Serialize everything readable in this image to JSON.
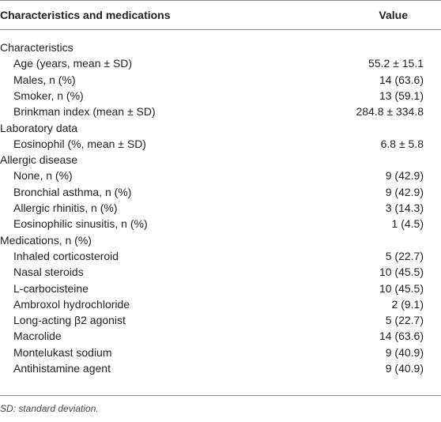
{
  "table": {
    "header": [
      "Characteristics and medications",
      "Value"
    ],
    "sections": [
      {
        "title": "Characteristics",
        "rows": [
          [
            "Age (years, mean ± SD)",
            "55.2 ± 15.1"
          ],
          [
            "Males, n (%)",
            "14 (63.6)"
          ],
          [
            "Smoker, n (%)",
            "13 (59.1)"
          ],
          [
            "Brinkman index (mean ± SD)",
            "284.8 ± 334.8"
          ]
        ]
      },
      {
        "title": "Laboratory data",
        "rows": [
          [
            "Eosinophil (%, mean ± SD)",
            "6.8 ± 5.8"
          ]
        ]
      },
      {
        "title": "Allergic disease",
        "rows": [
          [
            "None, n (%)",
            "9 (42.9)"
          ],
          [
            "Bronchial asthma, n (%)",
            "9 (42.9)"
          ],
          [
            "Allergic rhinitis, n (%)",
            "3 (14.3)"
          ],
          [
            "Eosinophilic sinusitis, n (%)",
            "1 (4.5)"
          ]
        ]
      },
      {
        "title": "Medications, n (%)",
        "rows": [
          [
            "Inhaled corticosteroid",
            "5 (22.7)"
          ],
          [
            "Nasal steroids",
            "10 (45.5)"
          ],
          [
            "L-carbocisteine",
            "10 (45.5)"
          ],
          [
            "Ambroxol hydrochloride",
            "2 (9.1)"
          ],
          [
            "Long-acting β2 agonist",
            "5 (22.7)"
          ],
          [
            "Macrolide",
            "14 (63.6)"
          ],
          [
            "Montelukast sodium",
            "9 (40.9)"
          ],
          [
            "Antihistamine agent",
            "9 (40.9)"
          ]
        ]
      }
    ],
    "footnote": "SD: standard deviation."
  }
}
